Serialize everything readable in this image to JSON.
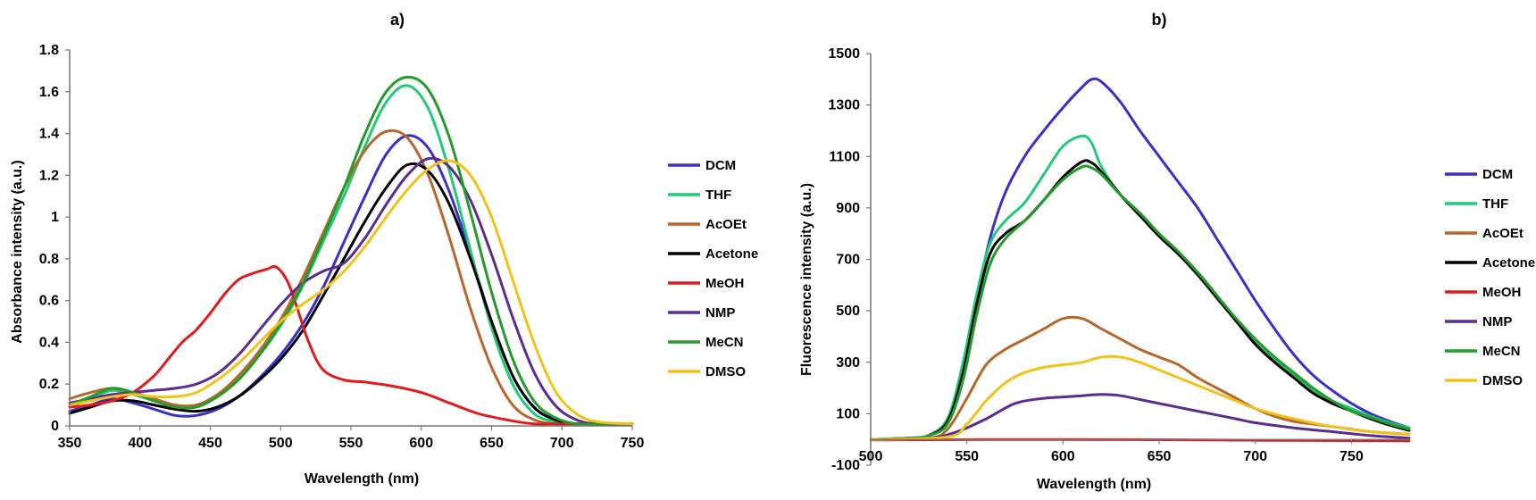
{
  "chart_data": [
    {
      "type": "line",
      "title": "a)",
      "xlabel": "Wavelength (nm)",
      "ylabel": "Absorbance intensity (a.u.)",
      "xlim": [
        350,
        750
      ],
      "ylim": [
        0,
        1.8
      ],
      "xticks": [
        "350",
        "400",
        "450",
        "500",
        "550",
        "600",
        "650",
        "700",
        "750"
      ],
      "yticks": [
        "0",
        "0.2",
        "0.4",
        "0.6",
        "0.8",
        "1",
        "1.2",
        "1.4",
        "1.6",
        "1.8"
      ],
      "legend": "right",
      "series": [
        {
          "name": "DCM",
          "color": "#3b2fc9",
          "x": [
            350,
            365,
            380,
            395,
            410,
            425,
            440,
            455,
            470,
            485,
            500,
            515,
            530,
            545,
            560,
            575,
            590,
            605,
            620,
            635,
            650,
            665,
            680,
            695,
            710,
            725,
            750
          ],
          "y": [
            0.07,
            0.1,
            0.13,
            0.11,
            0.08,
            0.05,
            0.05,
            0.08,
            0.14,
            0.23,
            0.34,
            0.48,
            0.66,
            0.88,
            1.1,
            1.3,
            1.39,
            1.33,
            1.12,
            0.82,
            0.5,
            0.24,
            0.09,
            0.03,
            0.01,
            0.01,
            0.01
          ]
        },
        {
          "name": "THF",
          "color": "#22c97a",
          "x": [
            350,
            365,
            380,
            395,
            410,
            425,
            440,
            455,
            470,
            485,
            500,
            515,
            530,
            545,
            560,
            575,
            590,
            605,
            620,
            635,
            650,
            665,
            680,
            695,
            710,
            725,
            750
          ],
          "y": [
            0.09,
            0.13,
            0.17,
            0.15,
            0.12,
            0.09,
            0.09,
            0.14,
            0.23,
            0.34,
            0.48,
            0.66,
            0.88,
            1.1,
            1.34,
            1.55,
            1.63,
            1.52,
            1.22,
            0.84,
            0.47,
            0.2,
            0.06,
            0.02,
            0.01,
            0.01,
            0.01
          ]
        },
        {
          "name": "AcOEt",
          "color": "#b8662b",
          "x": [
            350,
            365,
            380,
            395,
            410,
            425,
            440,
            455,
            470,
            485,
            500,
            515,
            530,
            545,
            560,
            575,
            590,
            605,
            620,
            635,
            650,
            665,
            680,
            695,
            710,
            725,
            750
          ],
          "y": [
            0.13,
            0.16,
            0.18,
            0.16,
            0.13,
            0.1,
            0.1,
            0.15,
            0.24,
            0.36,
            0.51,
            0.7,
            0.92,
            1.14,
            1.32,
            1.41,
            1.38,
            1.2,
            0.9,
            0.56,
            0.28,
            0.1,
            0.03,
            0.01,
            0.01,
            0.01,
            0.01
          ]
        },
        {
          "name": "Acetone",
          "color": "#000000",
          "x": [
            350,
            365,
            380,
            395,
            410,
            425,
            440,
            455,
            470,
            485,
            500,
            515,
            530,
            545,
            560,
            575,
            590,
            605,
            620,
            635,
            650,
            665,
            680,
            695,
            710,
            725,
            750
          ],
          "y": [
            0.06,
            0.09,
            0.12,
            0.12,
            0.1,
            0.08,
            0.07,
            0.09,
            0.14,
            0.22,
            0.32,
            0.45,
            0.62,
            0.8,
            0.98,
            1.14,
            1.25,
            1.22,
            1.06,
            0.8,
            0.5,
            0.24,
            0.09,
            0.03,
            0.01,
            0.01,
            0.01
          ]
        },
        {
          "name": "MeOH",
          "color": "#e11b1b",
          "x": [
            350,
            365,
            380,
            395,
            410,
            420,
            430,
            440,
            450,
            460,
            470,
            480,
            490,
            497,
            505,
            512,
            520,
            530,
            545,
            560,
            580,
            600,
            620,
            640,
            660,
            680,
            700,
            750
          ],
          "y": [
            0.09,
            0.1,
            0.12,
            0.16,
            0.24,
            0.32,
            0.4,
            0.46,
            0.54,
            0.63,
            0.7,
            0.73,
            0.75,
            0.76,
            0.69,
            0.56,
            0.4,
            0.27,
            0.22,
            0.21,
            0.19,
            0.16,
            0.11,
            0.06,
            0.03,
            0.01,
            0.01,
            0.01
          ]
        },
        {
          "name": "NMP",
          "color": "#5a2d91",
          "x": [
            350,
            365,
            380,
            395,
            410,
            425,
            440,
            455,
            470,
            485,
            500,
            515,
            530,
            545,
            560,
            575,
            590,
            605,
            620,
            635,
            650,
            665,
            680,
            695,
            710,
            725,
            750
          ],
          "y": [
            0.11,
            0.13,
            0.15,
            0.16,
            0.17,
            0.18,
            0.2,
            0.25,
            0.34,
            0.46,
            0.58,
            0.68,
            0.74,
            0.78,
            0.9,
            1.06,
            1.2,
            1.28,
            1.24,
            1.08,
            0.82,
            0.52,
            0.26,
            0.1,
            0.03,
            0.01,
            0.01
          ]
        },
        {
          "name": "MeCN",
          "color": "#239c2b",
          "x": [
            350,
            365,
            380,
            395,
            410,
            425,
            440,
            455,
            470,
            485,
            500,
            515,
            530,
            545,
            560,
            575,
            590,
            605,
            620,
            635,
            650,
            665,
            680,
            695,
            710,
            725,
            750
          ],
          "y": [
            0.1,
            0.14,
            0.18,
            0.16,
            0.12,
            0.09,
            0.09,
            0.14,
            0.22,
            0.34,
            0.49,
            0.67,
            0.9,
            1.14,
            1.4,
            1.6,
            1.67,
            1.61,
            1.38,
            1.02,
            0.64,
            0.32,
            0.12,
            0.04,
            0.01,
            0.01,
            0.01
          ]
        },
        {
          "name": "DMSO",
          "color": "#f2c21a",
          "x": [
            350,
            365,
            380,
            395,
            410,
            425,
            440,
            455,
            470,
            485,
            500,
            515,
            530,
            545,
            560,
            575,
            590,
            605,
            620,
            635,
            650,
            665,
            680,
            695,
            710,
            725,
            750
          ],
          "y": [
            0.1,
            0.12,
            0.14,
            0.15,
            0.14,
            0.14,
            0.16,
            0.22,
            0.3,
            0.4,
            0.5,
            0.58,
            0.65,
            0.74,
            0.86,
            1.0,
            1.13,
            1.23,
            1.27,
            1.2,
            1.0,
            0.7,
            0.4,
            0.17,
            0.06,
            0.02,
            0.01
          ]
        }
      ]
    },
    {
      "type": "line",
      "title": "b)",
      "xlabel": "Wavelength (nm)",
      "ylabel": "Fluorescence intensity (a.u.)",
      "xlim": [
        500,
        780
      ],
      "ylim": [
        -100,
        1500
      ],
      "xticks": [
        "500",
        "550",
        "600",
        "650",
        "700",
        "750"
      ],
      "yticks": [
        "-100",
        "100",
        "300",
        "500",
        "700",
        "900",
        "1100",
        "1300",
        "1500"
      ],
      "legend": "right",
      "series": [
        {
          "name": "DCM",
          "color": "#3b2fc9",
          "x": [
            500,
            520,
            530,
            540,
            548,
            555,
            562,
            570,
            580,
            590,
            600,
            610,
            615,
            620,
            630,
            640,
            650,
            660,
            670,
            680,
            690,
            700,
            710,
            720,
            730,
            740,
            750,
            760,
            770,
            780
          ],
          "y": [
            0,
            5,
            15,
            80,
            280,
            540,
            780,
            960,
            1100,
            1200,
            1290,
            1370,
            1400,
            1390,
            1310,
            1200,
            1100,
            1000,
            900,
            780,
            660,
            540,
            430,
            330,
            250,
            190,
            140,
            100,
            70,
            45
          ]
        },
        {
          "name": "THF",
          "color": "#22c97a",
          "x": [
            500,
            520,
            530,
            540,
            548,
            555,
            562,
            570,
            580,
            590,
            600,
            610,
            615,
            620,
            630,
            640,
            650,
            660,
            670,
            680,
            690,
            700,
            710,
            720,
            730,
            740,
            750,
            760,
            770,
            780
          ],
          "y": [
            0,
            5,
            15,
            80,
            300,
            560,
            760,
            850,
            920,
            1030,
            1140,
            1180,
            1150,
            1060,
            950,
            870,
            790,
            720,
            650,
            560,
            460,
            380,
            310,
            250,
            190,
            150,
            120,
            90,
            65,
            45
          ]
        },
        {
          "name": "AcOEt",
          "color": "#b8662b",
          "x": [
            500,
            530,
            540,
            550,
            560,
            570,
            580,
            590,
            600,
            610,
            620,
            630,
            640,
            650,
            660,
            670,
            680,
            690,
            700,
            710,
            720,
            730,
            740,
            750,
            760,
            770,
            780
          ],
          "y": [
            0,
            5,
            40,
            160,
            290,
            350,
            390,
            430,
            470,
            470,
            430,
            390,
            350,
            320,
            290,
            240,
            200,
            160,
            120,
            90,
            70,
            60,
            50,
            40,
            30,
            25,
            20
          ]
        },
        {
          "name": "Acetone",
          "color": "#000000",
          "x": [
            500,
            520,
            530,
            540,
            548,
            555,
            562,
            570,
            580,
            590,
            600,
            610,
            615,
            620,
            630,
            640,
            650,
            660,
            670,
            680,
            690,
            700,
            710,
            720,
            730,
            740,
            750,
            760,
            770,
            780
          ],
          "y": [
            0,
            5,
            15,
            70,
            260,
            520,
            720,
            800,
            850,
            930,
            1020,
            1080,
            1075,
            1040,
            950,
            870,
            790,
            720,
            640,
            550,
            460,
            370,
            300,
            240,
            180,
            140,
            110,
            80,
            55,
            35
          ]
        },
        {
          "name": "MeOH",
          "color": "#e11b1b",
          "x": [
            500,
            600,
            700,
            780
          ],
          "y": [
            -2,
            0,
            -3,
            -5
          ]
        },
        {
          "name": "NMP",
          "color": "#5a2d91",
          "x": [
            500,
            530,
            545,
            560,
            575,
            590,
            600,
            610,
            620,
            630,
            640,
            650,
            660,
            670,
            680,
            690,
            700,
            720,
            740,
            760,
            780
          ],
          "y": [
            0,
            5,
            30,
            80,
            140,
            160,
            165,
            170,
            175,
            170,
            155,
            140,
            125,
            110,
            95,
            80,
            65,
            45,
            30,
            15,
            5
          ]
        },
        {
          "name": "MeCN",
          "color": "#239c2b",
          "x": [
            500,
            520,
            530,
            540,
            548,
            555,
            562,
            570,
            580,
            590,
            600,
            610,
            615,
            620,
            630,
            640,
            650,
            660,
            670,
            680,
            690,
            700,
            710,
            720,
            730,
            740,
            750,
            760,
            770,
            780
          ],
          "y": [
            0,
            5,
            15,
            60,
            230,
            480,
            680,
            780,
            850,
            930,
            1010,
            1060,
            1055,
            1030,
            950,
            880,
            800,
            730,
            650,
            560,
            470,
            390,
            320,
            260,
            200,
            150,
            110,
            85,
            60,
            40
          ]
        },
        {
          "name": "DMSO",
          "color": "#f2c21a",
          "x": [
            500,
            540,
            550,
            560,
            570,
            580,
            590,
            600,
            610,
            620,
            630,
            640,
            650,
            660,
            670,
            680,
            690,
            700,
            720,
            740,
            760,
            780
          ],
          "y": [
            0,
            10,
            60,
            150,
            220,
            260,
            280,
            290,
            300,
            320,
            320,
            300,
            270,
            240,
            210,
            180,
            150,
            120,
            80,
            50,
            30,
            20
          ]
        }
      ]
    }
  ]
}
